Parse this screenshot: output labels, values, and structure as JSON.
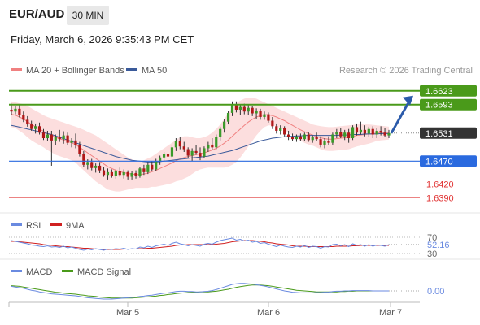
{
  "header": {
    "symbol": "EUR/AUD",
    "timeframe": "30 MIN",
    "datetime": "Friday, March 6, 2026 9:35:43 PM CET"
  },
  "legend": {
    "ma20_label": "MA 20 + Bollinger Bands",
    "ma50_label": "MA 50",
    "credit": "Research © 2026 Trading Central",
    "colors": {
      "ma20": "#f08080",
      "ma50": "#3a5a9a",
      "bands_fill": "#fbd3d3"
    }
  },
  "levels": {
    "resistance": [
      {
        "value": 1.6623,
        "label": "1.6623",
        "color": "#4a9a1a"
      },
      {
        "value": 1.6593,
        "label": "1.6593",
        "color": "#4a9a1a"
      }
    ],
    "current": {
      "value": 1.6531,
      "label": "1.6531",
      "color": "#333333"
    },
    "pivot": {
      "value": 1.647,
      "label": "1.6470",
      "color": "#2a6adf"
    },
    "support": [
      {
        "value": 1.642,
        "label": "1.6420",
        "color": "#e03030"
      },
      {
        "value": 1.639,
        "label": "1.6390",
        "color": "#e03030"
      }
    ]
  },
  "rsi": {
    "label": "RSI",
    "signal_label": "9MA",
    "value": 52.16,
    "value_label": "52.16",
    "levels": [
      30,
      70
    ],
    "level_labels": [
      "30",
      "70"
    ],
    "colors": {
      "rsi": "#6a8ae0",
      "ma": "#d02020"
    }
  },
  "macd": {
    "label": "MACD",
    "signal_label": "MACD Signal",
    "value": 0.0,
    "value_label": "0.00",
    "colors": {
      "macd": "#6a8ae0",
      "signal": "#4a9a1a"
    }
  },
  "x_axis": {
    "ticks": [
      "Mar 5",
      "Mar 6",
      "Mar 7"
    ]
  },
  "chart_data": {
    "type": "candlestick",
    "ylim": [
      1.6375,
      1.6635
    ],
    "ohlc": [
      [
        1.6582,
        1.6595,
        1.657,
        1.6578
      ],
      [
        1.6578,
        1.659,
        1.6572,
        1.6584
      ],
      [
        1.6584,
        1.6592,
        1.6565,
        1.657
      ],
      [
        1.657,
        1.6578,
        1.6555,
        1.656
      ],
      [
        1.656,
        1.6568,
        1.6545,
        1.655
      ],
      [
        1.655,
        1.6558,
        1.6536,
        1.654
      ],
      [
        1.654,
        1.6552,
        1.653,
        1.6546
      ],
      [
        1.6546,
        1.6554,
        1.6528,
        1.6532
      ],
      [
        1.6532,
        1.654,
        1.6516,
        1.652
      ],
      [
        1.652,
        1.6536,
        1.6514,
        1.6528
      ],
      [
        1.6528,
        1.6536,
        1.646,
        1.6515
      ],
      [
        1.6515,
        1.6528,
        1.6505,
        1.6522
      ],
      [
        1.6522,
        1.6538,
        1.6512,
        1.6518
      ],
      [
        1.6518,
        1.6535,
        1.6508,
        1.6526
      ],
      [
        1.6526,
        1.6532,
        1.6505,
        1.651
      ],
      [
        1.651,
        1.652,
        1.65,
        1.6515
      ],
      [
        1.6515,
        1.653,
        1.6498,
        1.6505
      ],
      [
        1.6505,
        1.6512,
        1.648,
        1.6486
      ],
      [
        1.6486,
        1.6492,
        1.6458,
        1.6462
      ],
      [
        1.6462,
        1.6474,
        1.6452,
        1.6468
      ],
      [
        1.6468,
        1.6475,
        1.645,
        1.6455
      ],
      [
        1.6455,
        1.6465,
        1.6445,
        1.646
      ],
      [
        1.646,
        1.6468,
        1.6444,
        1.645
      ],
      [
        1.645,
        1.6458,
        1.6436,
        1.644
      ],
      [
        1.644,
        1.6454,
        1.643,
        1.6446
      ],
      [
        1.6446,
        1.6452,
        1.6434,
        1.6438
      ],
      [
        1.6438,
        1.6452,
        1.6432,
        1.6448
      ],
      [
        1.6448,
        1.6456,
        1.6436,
        1.644
      ],
      [
        1.644,
        1.6452,
        1.6432,
        1.6446
      ],
      [
        1.6446,
        1.645,
        1.643,
        1.6436
      ],
      [
        1.6436,
        1.6448,
        1.643,
        1.6444
      ],
      [
        1.6444,
        1.645,
        1.6432,
        1.6438
      ],
      [
        1.6438,
        1.6458,
        1.6434,
        1.6454
      ],
      [
        1.6454,
        1.6462,
        1.644,
        1.6446
      ],
      [
        1.6446,
        1.6468,
        1.6442,
        1.6462
      ],
      [
        1.6462,
        1.647,
        1.6448,
        1.6452
      ],
      [
        1.6452,
        1.6475,
        1.6448,
        1.647
      ],
      [
        1.647,
        1.6482,
        1.6462,
        1.6478
      ],
      [
        1.6478,
        1.649,
        1.647,
        1.6486
      ],
      [
        1.6486,
        1.6494,
        1.6472,
        1.648
      ],
      [
        1.648,
        1.6505,
        1.6476,
        1.65
      ],
      [
        1.65,
        1.652,
        1.6492,
        1.6514
      ],
      [
        1.6514,
        1.6522,
        1.6496,
        1.6502
      ],
      [
        1.6502,
        1.6512,
        1.649,
        1.6496
      ],
      [
        1.6496,
        1.65,
        1.6476,
        1.6482
      ],
      [
        1.6482,
        1.6498,
        1.647,
        1.6492
      ],
      [
        1.6492,
        1.6505,
        1.6484,
        1.6488
      ],
      [
        1.6488,
        1.65,
        1.6472,
        1.648
      ],
      [
        1.648,
        1.6502,
        1.6476,
        1.6498
      ],
      [
        1.6498,
        1.6512,
        1.649,
        1.6506
      ],
      [
        1.6506,
        1.652,
        1.6495,
        1.65
      ],
      [
        1.65,
        1.6528,
        1.6496,
        1.6522
      ],
      [
        1.6522,
        1.6545,
        1.6515,
        1.654
      ],
      [
        1.654,
        1.6562,
        1.6532,
        1.6556
      ],
      [
        1.6556,
        1.658,
        1.655,
        1.6575
      ],
      [
        1.6575,
        1.66,
        1.6568,
        1.6594
      ],
      [
        1.6594,
        1.66,
        1.6576,
        1.6582
      ],
      [
        1.6582,
        1.6594,
        1.657,
        1.6588
      ],
      [
        1.6588,
        1.6595,
        1.6572,
        1.6578
      ],
      [
        1.6578,
        1.6592,
        1.657,
        1.6586
      ],
      [
        1.6586,
        1.659,
        1.6568,
        1.6574
      ],
      [
        1.6574,
        1.6585,
        1.6562,
        1.658
      ],
      [
        1.658,
        1.6584,
        1.656,
        1.6566
      ],
      [
        1.6566,
        1.6578,
        1.656,
        1.6572
      ],
      [
        1.6572,
        1.6576,
        1.6554,
        1.6558
      ],
      [
        1.6558,
        1.6566,
        1.654,
        1.6546
      ],
      [
        1.6546,
        1.6552,
        1.653,
        1.6536
      ],
      [
        1.6536,
        1.6548,
        1.6528,
        1.6542
      ],
      [
        1.6542,
        1.6546,
        1.6524,
        1.6528
      ],
      [
        1.6528,
        1.6536,
        1.6516,
        1.6522
      ],
      [
        1.6522,
        1.653,
        1.6514,
        1.6518
      ],
      [
        1.6518,
        1.6528,
        1.6512,
        1.6524
      ],
      [
        1.6524,
        1.653,
        1.6514,
        1.6518
      ],
      [
        1.6518,
        1.6532,
        1.6514,
        1.6528
      ],
      [
        1.6528,
        1.6534,
        1.6512,
        1.6516
      ],
      [
        1.6516,
        1.6526,
        1.651,
        1.6522
      ],
      [
        1.6522,
        1.6532,
        1.6514,
        1.6518
      ],
      [
        1.6518,
        1.6524,
        1.65,
        1.6506
      ],
      [
        1.6506,
        1.652,
        1.6498,
        1.6514
      ],
      [
        1.6514,
        1.6524,
        1.6506,
        1.651
      ],
      [
        1.651,
        1.6532,
        1.6506,
        1.6528
      ],
      [
        1.6528,
        1.654,
        1.652,
        1.6534
      ],
      [
        1.6534,
        1.6542,
        1.652,
        1.6524
      ],
      [
        1.6524,
        1.6538,
        1.6516,
        1.6532
      ],
      [
        1.6532,
        1.654,
        1.651,
        1.652
      ],
      [
        1.652,
        1.6548,
        1.6516,
        1.6544
      ],
      [
        1.6544,
        1.6552,
        1.6526,
        1.6532
      ],
      [
        1.6532,
        1.6556,
        1.6528,
        1.6538
      ],
      [
        1.6538,
        1.6548,
        1.6524,
        1.653
      ],
      [
        1.653,
        1.6545,
        1.6522,
        1.654
      ],
      [
        1.654,
        1.6546,
        1.652,
        1.6528
      ],
      [
        1.6528,
        1.6542,
        1.652,
        1.6536
      ],
      [
        1.6536,
        1.6546,
        1.6526,
        1.6532
      ],
      [
        1.6532,
        1.6542,
        1.6522,
        1.6526
      ],
      [
        1.6526,
        1.6538,
        1.652,
        1.6531
      ]
    ],
    "ma20": [
      1.6572,
      1.657,
      1.6566,
      1.6562,
      1.6556,
      1.655,
      1.6545,
      1.654,
      1.6535,
      1.653,
      1.6526,
      1.6522,
      1.6519,
      1.6516,
      1.6513,
      1.651,
      1.6506,
      1.65,
      1.6494,
      1.6488,
      1.6482,
      1.6476,
      1.647,
      1.6464,
      1.6458,
      1.6454,
      1.645,
      1.6447,
      1.6445,
      1.6443,
      1.6442,
      1.6441,
      1.6441,
      1.6442,
      1.6444,
      1.6447,
      1.645,
      1.6454,
      1.6458,
      1.6462,
      1.6466,
      1.6471,
      1.6475,
      1.6478,
      1.648,
      1.6482,
      1.6484,
      1.6486,
      1.6488,
      1.6491,
      1.6494,
      1.6498,
      1.6503,
      1.6509,
      1.6516,
      1.6524,
      1.6532,
      1.654,
      1.6548,
      1.6555,
      1.6561,
      1.6566,
      1.6569,
      1.6571,
      1.6571,
      1.6569,
      1.6566,
      1.6562,
      1.6558,
      1.6553,
      1.6548,
      1.6543,
      1.6538,
      1.6534,
      1.653,
      1.6527,
      1.6524,
      1.6521,
      1.6519,
      1.6518,
      1.6518,
      1.6519,
      1.652,
      1.6521,
      1.6522,
      1.6524,
      1.6526,
      1.6527,
      1.6528,
      1.6529,
      1.653,
      1.6531,
      1.6531,
      1.6531,
      1.6531
    ],
    "ma50": [
      1.6548,
      1.6546,
      1.6544,
      1.6542,
      1.654,
      1.6538,
      1.6536,
      1.6534,
      1.6532,
      1.653,
      1.6528,
      1.6525,
      1.6522,
      1.6519,
      1.6516,
      1.6513,
      1.651,
      1.6507,
      1.6504,
      1.6501,
      1.6498,
      1.6495,
      1.6492,
      1.6489,
      1.6486,
      1.6483,
      1.648,
      1.6478,
      1.6476,
      1.6474,
      1.6472,
      1.6471,
      1.647,
      1.6469,
      1.6468,
      1.6468,
      1.6468,
      1.6469,
      1.647,
      1.6471,
      1.6472,
      1.6473,
      1.6474,
      1.6475,
      1.6476,
      1.6477,
      1.6478,
      1.6479,
      1.648,
      1.6481,
      1.6483,
      1.6485,
      1.6487,
      1.6489,
      1.6491,
      1.6493,
      1.6496,
      1.6499,
      1.6502,
      1.6505,
      1.6508,
      1.6511,
      1.6514,
      1.6516,
      1.6518,
      1.652,
      1.6521,
      1.6522,
      1.6523,
      1.6524,
      1.6524,
      1.6525,
      1.6525,
      1.6526,
      1.6526,
      1.6526,
      1.6526,
      1.6526,
      1.6526,
      1.6526,
      1.6526,
      1.6526,
      1.6527,
      1.6527,
      1.6527,
      1.6528,
      1.6528,
      1.6528,
      1.6529,
      1.6529,
      1.6529,
      1.6529,
      1.653,
      1.653,
      1.653
    ],
    "bb_upper": [
      1.66,
      1.6598,
      1.6596,
      1.6594,
      1.659,
      1.6585,
      1.658,
      1.6575,
      1.657,
      1.6566,
      1.6563,
      1.656,
      1.6557,
      1.6554,
      1.6551,
      1.6548,
      1.6545,
      1.6542,
      1.6538,
      1.6534,
      1.653,
      1.6526,
      1.652,
      1.6514,
      1.6508,
      1.6502,
      1.6496,
      1.649,
      1.6484,
      1.6478,
      1.6474,
      1.647,
      1.647,
      1.6472,
      1.6476,
      1.648,
      1.6486,
      1.6492,
      1.6498,
      1.6504,
      1.651,
      1.6516,
      1.6522,
      1.6524,
      1.6524,
      1.6522,
      1.652,
      1.652,
      1.6522,
      1.6526,
      1.6532,
      1.654,
      1.655,
      1.6562,
      1.6574,
      1.6586,
      1.6596,
      1.6602,
      1.6606,
      1.6608,
      1.6608,
      1.6606,
      1.6602,
      1.6598,
      1.6594,
      1.659,
      1.6586,
      1.6582,
      1.6578,
      1.6574,
      1.657,
      1.6566,
      1.6562,
      1.6558,
      1.6554,
      1.655,
      1.6548,
      1.6546,
      1.6545,
      1.6544,
      1.6544,
      1.6545,
      1.6546,
      1.6547,
      1.6548,
      1.6549,
      1.655,
      1.655,
      1.655,
      1.655,
      1.6549,
      1.6548,
      1.6547,
      1.6546,
      1.6545
    ],
    "bb_lower": [
      1.6544,
      1.6542,
      1.6536,
      1.653,
      1.6522,
      1.6515,
      1.651,
      1.6505,
      1.65,
      1.6494,
      1.6489,
      1.6484,
      1.6481,
      1.6478,
      1.6475,
      1.6472,
      1.6467,
      1.6458,
      1.645,
      1.6442,
      1.6434,
      1.6426,
      1.642,
      1.6414,
      1.6408,
      1.6406,
      1.6404,
      1.6404,
      1.6406,
      1.6408,
      1.641,
      1.6412,
      1.6412,
      1.6412,
      1.6412,
      1.6414,
      1.6414,
      1.6416,
      1.6418,
      1.642,
      1.6422,
      1.6426,
      1.6428,
      1.6432,
      1.6436,
      1.6442,
      1.6448,
      1.6452,
      1.6454,
      1.6456,
      1.6456,
      1.6456,
      1.6456,
      1.6456,
      1.6458,
      1.6462,
      1.6468,
      1.6478,
      1.649,
      1.6502,
      1.6514,
      1.6526,
      1.6536,
      1.6544,
      1.6548,
      1.6548,
      1.6546,
      1.6542,
      1.6538,
      1.6532,
      1.6526,
      1.652,
      1.6514,
      1.651,
      1.6506,
      1.6504,
      1.65,
      1.6496,
      1.6493,
      1.6492,
      1.6492,
      1.6493,
      1.6494,
      1.6495,
      1.6496,
      1.6499,
      1.6502,
      1.6504,
      1.6506,
      1.6508,
      1.6511,
      1.6514,
      1.6515,
      1.6516,
      1.6517
    ],
    "rsi": [
      62,
      60,
      58,
      56,
      54,
      51,
      50,
      48,
      47,
      49,
      46,
      47,
      45,
      48,
      44,
      46,
      43,
      40,
      38,
      41,
      39,
      42,
      40,
      38,
      41,
      40,
      42,
      41,
      43,
      40,
      42,
      41,
      46,
      44,
      48,
      45,
      49,
      51,
      53,
      50,
      55,
      58,
      54,
      52,
      49,
      52,
      50,
      48,
      53,
      55,
      53,
      58,
      62,
      64,
      66,
      68,
      63,
      65,
      61,
      63,
      58,
      60,
      55,
      57,
      53,
      50,
      47,
      51,
      48,
      46,
      45,
      48,
      46,
      50,
      45,
      48,
      47,
      43,
      47,
      46,
      52,
      53,
      49,
      52,
      47,
      54,
      50,
      52,
      48,
      52,
      48,
      51,
      50,
      48,
      52
    ],
    "rsi_ma": [
      60,
      60,
      59,
      58,
      57,
      56,
      55,
      54,
      52,
      51,
      50,
      49,
      48,
      47,
      47,
      46,
      45,
      44,
      43,
      43,
      42,
      41,
      41,
      40,
      40,
      40,
      40,
      40,
      41,
      41,
      41,
      41,
      42,
      42,
      43,
      43,
      44,
      45,
      46,
      47,
      48,
      50,
      51,
      51,
      52,
      52,
      52,
      52,
      52,
      52,
      52,
      53,
      54,
      55,
      57,
      59,
      60,
      61,
      62,
      62,
      62,
      61,
      60,
      59,
      57,
      56,
      54,
      53,
      52,
      51,
      49,
      48,
      48,
      48,
      47,
      47,
      47,
      47,
      47,
      47,
      47,
      48,
      48,
      48,
      48,
      49,
      49,
      50,
      50,
      50,
      50,
      50,
      50,
      50,
      50
    ],
    "macd": [
      0.0014,
      0.0012,
      0.001,
      0.0008,
      0.0005,
      0.0002,
      0.0,
      -0.0003,
      -0.0005,
      -0.0007,
      -0.0009,
      -0.001,
      -0.0011,
      -0.0012,
      -0.0013,
      -0.0014,
      -0.0015,
      -0.0017,
      -0.0019,
      -0.0021,
      -0.0022,
      -0.0023,
      -0.0024,
      -0.0025,
      -0.0025,
      -0.0025,
      -0.0024,
      -0.0023,
      -0.0022,
      -0.0021,
      -0.002,
      -0.0019,
      -0.0017,
      -0.0016,
      -0.0014,
      -0.0013,
      -0.0011,
      -0.0009,
      -0.0007,
      -0.0006,
      -0.0004,
      -0.0002,
      -0.0001,
      -0.0001,
      -0.0002,
      -0.0002,
      -0.0003,
      -0.0003,
      -0.0002,
      -0.0001,
      0.0001,
      0.0004,
      0.0008,
      0.0012,
      0.0016,
      0.002,
      0.0022,
      0.0023,
      0.0023,
      0.0022,
      0.0021,
      0.0019,
      0.0017,
      0.0015,
      0.0012,
      0.0009,
      0.0006,
      0.0003,
      0.0,
      -0.0002,
      -0.0004,
      -0.0005,
      -0.0006,
      -0.0006,
      -0.0006,
      -0.0006,
      -0.0005,
      -0.0005,
      -0.0004,
      -0.0004,
      -0.0002,
      -0.0001,
      -0.0001,
      0.0,
      0.0,
      0.0001,
      0.0001,
      0.0001,
      0.0001,
      0.0001,
      0.0,
      0.0,
      0.0,
      0.0,
      0.0
    ],
    "macd_signal": [
      0.0016,
      0.0015,
      0.0014,
      0.0012,
      0.001,
      0.0008,
      0.0006,
      0.0004,
      0.0002,
      0.0,
      -0.0002,
      -0.0004,
      -0.0005,
      -0.0007,
      -0.0008,
      -0.0009,
      -0.001,
      -0.0012,
      -0.0013,
      -0.0015,
      -0.0016,
      -0.0017,
      -0.0019,
      -0.002,
      -0.0021,
      -0.0022,
      -0.0022,
      -0.0022,
      -0.0022,
      -0.0022,
      -0.0022,
      -0.0021,
      -0.002,
      -0.0019,
      -0.0018,
      -0.0017,
      -0.0016,
      -0.0014,
      -0.0013,
      -0.0011,
      -0.001,
      -0.0008,
      -0.0007,
      -0.0006,
      -0.0005,
      -0.0004,
      -0.0004,
      -0.0003,
      -0.0003,
      -0.0003,
      -0.0002,
      -0.0001,
      0.0001,
      0.0003,
      0.0005,
      0.0008,
      0.0011,
      0.0013,
      0.0015,
      0.0017,
      0.0018,
      0.0018,
      0.0018,
      0.0017,
      0.0016,
      0.0014,
      0.0012,
      0.001,
      0.0008,
      0.0006,
      0.0004,
      0.0002,
      0.0001,
      0.0,
      -0.0001,
      -0.0002,
      -0.0003,
      -0.0003,
      -0.0003,
      -0.0003,
      -0.0003,
      -0.0003,
      -0.0002,
      -0.0002,
      -0.0001,
      -0.0001,
      0.0,
      0.0,
      0.0,
      0.0,
      0.0,
      0.0,
      0.0,
      0.0,
      0.0
    ]
  }
}
